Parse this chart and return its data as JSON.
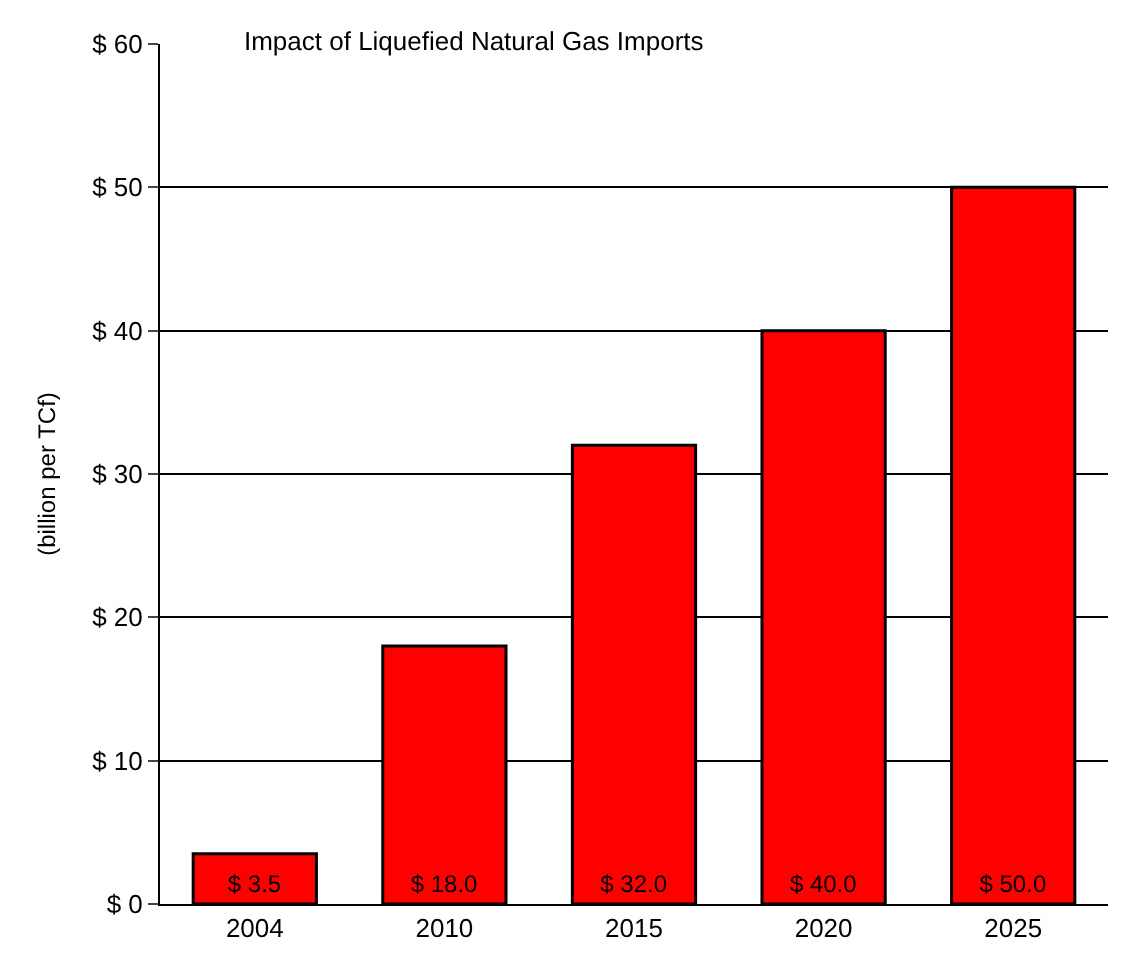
{
  "chart_data": {
    "type": "bar",
    "title": "Impact of Liquefied Natural Gas Imports",
    "ylabel": "(billion per TCf)",
    "categories": [
      "2004",
      "2010",
      "2015",
      "2020",
      "2025"
    ],
    "values": [
      3.5,
      18.0,
      32.0,
      40.0,
      50.0
    ],
    "value_labels": [
      "$ 3.5",
      "$ 18.0",
      "$ 32.0",
      "$ 40.0",
      "$ 50.0"
    ],
    "color": "#ff0000",
    "ylim": [
      0,
      60
    ],
    "yticks": [
      {
        "value": 0,
        "label": "$ 0"
      },
      {
        "value": 10,
        "label": "$ 10"
      },
      {
        "value": 20,
        "label": "$ 20"
      },
      {
        "value": 30,
        "label": "$ 30"
      },
      {
        "value": 40,
        "label": "$ 40"
      },
      {
        "value": 50,
        "label": "$ 50"
      },
      {
        "value": 60,
        "label": "$ 60"
      }
    ],
    "grid": "y",
    "legend": false
  }
}
